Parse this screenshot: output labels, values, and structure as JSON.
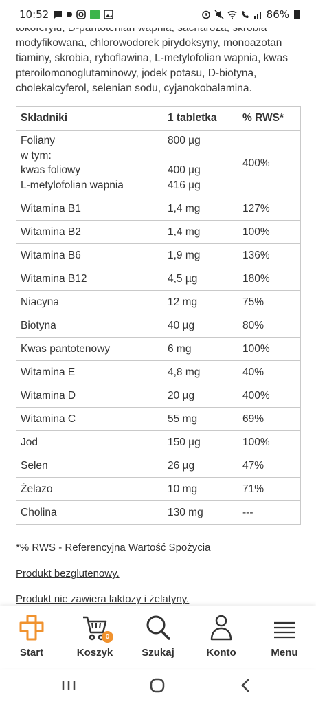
{
  "status_bar": {
    "time": "10:52",
    "battery": "86%",
    "left_icons": [
      "chat-icon",
      "notification-dot-icon",
      "instagram-icon",
      "green-app-icon",
      "image-icon"
    ],
    "right_icons": [
      "alarm-clock-icon",
      "mute-icon",
      "wifi-icon",
      "wifi-calling-icon",
      "signal-icon",
      "battery-icon"
    ]
  },
  "ingredients_text": "tokoferylu, D-pantotenian wapnia, sacharoza, skrobia modyfikowana, chlorowodorek pirydoksyny, monoazotan tiaminy, skrobia, ryboflawina, L-metylofolian wapnia, kwas pteroilomonoglutaminowy, jodek potasu, D-biotyna, cholekalcyferol, selenian sodu, cyjanokobalamina.",
  "table": {
    "headers": [
      "Składniki",
      "1 tabletka",
      "% RWS*"
    ],
    "folate": {
      "name_lines": [
        "Foliany",
        "w tym:",
        "kwas foliowy",
        "L-metylofolian wapnia"
      ],
      "amount_lines": [
        "800 µg",
        "",
        "400 µg",
        "416 µg"
      ],
      "rws": "400%"
    },
    "rows": [
      {
        "name": "Witamina B1",
        "amount": "1,4 mg",
        "rws": "127%"
      },
      {
        "name": "Witamina B2",
        "amount": "1,4 mg",
        "rws": "100%"
      },
      {
        "name": "Witamina B6",
        "amount": "1,9 mg",
        "rws": "136%"
      },
      {
        "name": "Witamina B12",
        "amount": "4,5 µg",
        "rws": "180%"
      },
      {
        "name": "Niacyna",
        "amount": "12 mg",
        "rws": "75%"
      },
      {
        "name": "Biotyna",
        "amount": "40 µg",
        "rws": "80%"
      },
      {
        "name": "Kwas pantotenowy",
        "amount": "6 mg",
        "rws": "100%"
      },
      {
        "name": "Witamina E",
        "amount": "4,8 mg",
        "rws": "40%"
      },
      {
        "name": "Witamina D",
        "amount": "20 µg",
        "rws": "400%"
      },
      {
        "name": "Witamina C",
        "amount": "55 mg",
        "rws": "69%"
      },
      {
        "name": "Jod",
        "amount": "150 µg",
        "rws": "100%"
      },
      {
        "name": "Selen",
        "amount": "26 µg",
        "rws": "47%"
      },
      {
        "name": "Żelazo",
        "amount": "10 mg",
        "rws": "71%"
      },
      {
        "name": "Cholina",
        "amount": "130 mg",
        "rws": "---"
      }
    ]
  },
  "footnote": "*% RWS - Referencyjna Wartość Spożycia",
  "notes": [
    "Produkt bezglutenowy.",
    "Produkt nie zawiera laktozy i żelatyny."
  ],
  "bottom_nav": {
    "start": "Start",
    "cart": "Koszyk",
    "cart_count": "0",
    "search": "Szukaj",
    "account": "Konto",
    "menu": "Menu"
  },
  "colors": {
    "accent": "#f0922e",
    "text": "#333333",
    "border": "#c9c9c9"
  }
}
